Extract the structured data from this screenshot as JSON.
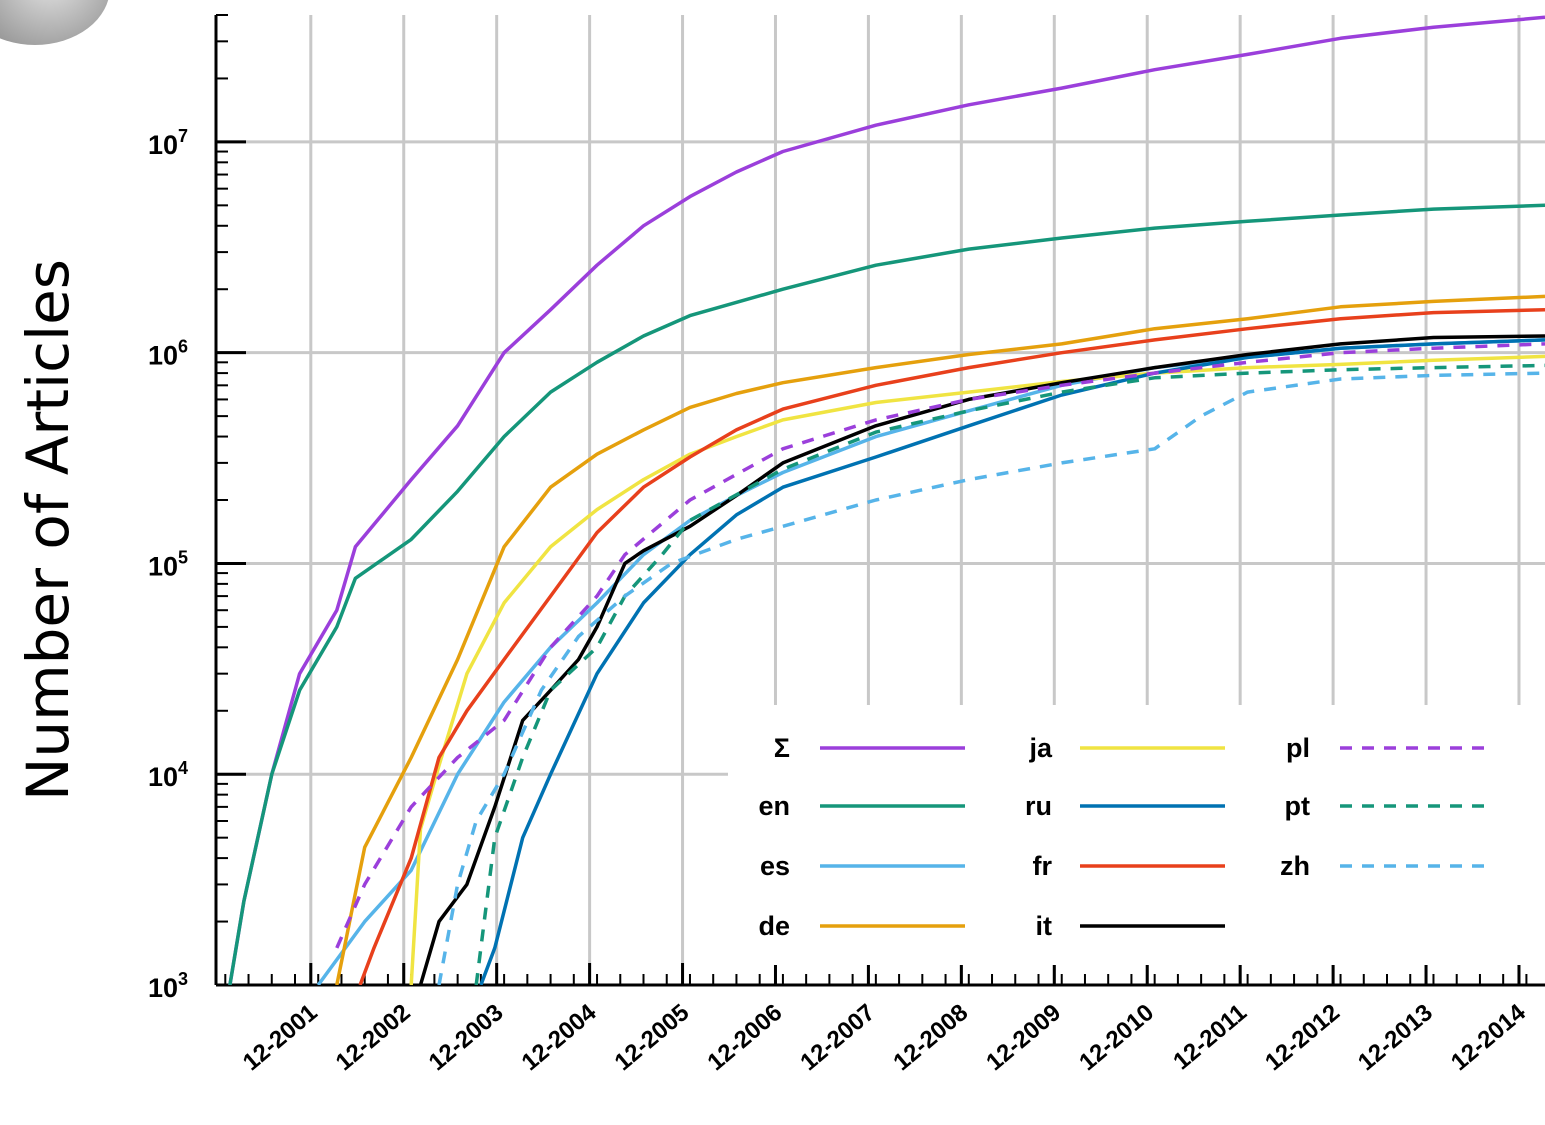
{
  "chart_data": {
    "type": "line",
    "ylabel": "Number of Articles",
    "xlabel": "",
    "yscale": "log",
    "ylim": [
      1000,
      40000000
    ],
    "xlim": [
      2000.9,
      2015.2
    ],
    "y_ticks": [
      {
        "value": 1000,
        "base": "10",
        "exp": "3"
      },
      {
        "value": 10000,
        "base": "10",
        "exp": "4"
      },
      {
        "value": 100000,
        "base": "10",
        "exp": "5"
      },
      {
        "value": 1000000,
        "base": "10",
        "exp": "6"
      },
      {
        "value": 10000000,
        "base": "10",
        "exp": "7"
      }
    ],
    "x_ticks": [
      {
        "value": 2001.92,
        "label": "12-2001"
      },
      {
        "value": 2002.92,
        "label": "12-2002"
      },
      {
        "value": 2003.92,
        "label": "12-2003"
      },
      {
        "value": 2004.92,
        "label": "12-2004"
      },
      {
        "value": 2005.92,
        "label": "12-2005"
      },
      {
        "value": 2006.92,
        "label": "12-2006"
      },
      {
        "value": 2007.92,
        "label": "12-2007"
      },
      {
        "value": 2008.92,
        "label": "12-2008"
      },
      {
        "value": 2009.92,
        "label": "12-2009"
      },
      {
        "value": 2010.92,
        "label": "12-2010"
      },
      {
        "value": 2011.92,
        "label": "12-2011"
      },
      {
        "value": 2012.92,
        "label": "12-2012"
      },
      {
        "value": 2013.92,
        "label": "12-2013"
      },
      {
        "value": 2014.92,
        "label": "12-2014"
      }
    ],
    "grid": true,
    "legend_position": "bottom-right",
    "series": [
      {
        "name": "Σ",
        "color": "#9b3fdb",
        "dash": "solid",
        "points": [
          [
            2001.05,
            1000
          ],
          [
            2001.2,
            2500
          ],
          [
            2001.5,
            10000
          ],
          [
            2001.8,
            30000
          ],
          [
            2002.2,
            60000
          ],
          [
            2002.4,
            120000
          ],
          [
            2003.0,
            250000
          ],
          [
            2003.5,
            450000
          ],
          [
            2004.0,
            1000000
          ],
          [
            2004.5,
            1600000
          ],
          [
            2005.0,
            2600000
          ],
          [
            2005.5,
            4000000
          ],
          [
            2006.0,
            5500000
          ],
          [
            2006.5,
            7200000
          ],
          [
            2007.0,
            9000000
          ],
          [
            2008.0,
            12000000
          ],
          [
            2009.0,
            15000000
          ],
          [
            2010.0,
            18000000
          ],
          [
            2011.0,
            22000000
          ],
          [
            2012.0,
            26000000
          ],
          [
            2013.0,
            31000000
          ],
          [
            2014.0,
            35000000
          ],
          [
            2015.2,
            39000000
          ]
        ]
      },
      {
        "name": "en",
        "color": "#15967a",
        "dash": "solid",
        "points": [
          [
            2001.05,
            1000
          ],
          [
            2001.2,
            2500
          ],
          [
            2001.5,
            10000
          ],
          [
            2001.8,
            25000
          ],
          [
            2002.2,
            50000
          ],
          [
            2002.4,
            85000
          ],
          [
            2003.0,
            130000
          ],
          [
            2003.5,
            220000
          ],
          [
            2004.0,
            400000
          ],
          [
            2004.5,
            650000
          ],
          [
            2005.0,
            900000
          ],
          [
            2005.5,
            1200000
          ],
          [
            2006.0,
            1500000
          ],
          [
            2007.0,
            2000000
          ],
          [
            2008.0,
            2600000
          ],
          [
            2009.0,
            3100000
          ],
          [
            2010.0,
            3500000
          ],
          [
            2011.0,
            3900000
          ],
          [
            2012.0,
            4200000
          ],
          [
            2013.0,
            4500000
          ],
          [
            2014.0,
            4800000
          ],
          [
            2015.2,
            5000000
          ]
        ]
      },
      {
        "name": "es",
        "color": "#56b4e9",
        "dash": "solid",
        "points": [
          [
            2002.0,
            1000
          ],
          [
            2002.5,
            2000
          ],
          [
            2003.0,
            3500
          ],
          [
            2003.5,
            10000
          ],
          [
            2004.0,
            22000
          ],
          [
            2004.5,
            40000
          ],
          [
            2005.0,
            65000
          ],
          [
            2005.5,
            110000
          ],
          [
            2006.0,
            160000
          ],
          [
            2006.5,
            210000
          ],
          [
            2007.0,
            270000
          ],
          [
            2008.0,
            400000
          ],
          [
            2009.0,
            530000
          ],
          [
            2010.0,
            700000
          ],
          [
            2011.0,
            850000
          ],
          [
            2012.0,
            950000
          ],
          [
            2013.0,
            1050000
          ],
          [
            2014.0,
            1100000
          ],
          [
            2015.2,
            1150000
          ]
        ]
      },
      {
        "name": "de",
        "color": "#e5a00d",
        "dash": "solid",
        "points": [
          [
            2002.2,
            1000
          ],
          [
            2002.5,
            4500
          ],
          [
            2003.0,
            12000
          ],
          [
            2003.5,
            35000
          ],
          [
            2004.0,
            120000
          ],
          [
            2004.5,
            230000
          ],
          [
            2005.0,
            330000
          ],
          [
            2005.5,
            430000
          ],
          [
            2006.0,
            550000
          ],
          [
            2006.5,
            640000
          ],
          [
            2007.0,
            720000
          ],
          [
            2008.0,
            850000
          ],
          [
            2009.0,
            980000
          ],
          [
            2010.0,
            1100000
          ],
          [
            2011.0,
            1300000
          ],
          [
            2012.0,
            1450000
          ],
          [
            2013.0,
            1650000
          ],
          [
            2014.0,
            1750000
          ],
          [
            2015.2,
            1850000
          ]
        ]
      },
      {
        "name": "ja",
        "color": "#f0e442",
        "dash": "solid",
        "points": [
          [
            2003.0,
            1000
          ],
          [
            2003.1,
            5500
          ],
          [
            2003.3,
            11000
          ],
          [
            2003.6,
            30000
          ],
          [
            2004.0,
            65000
          ],
          [
            2004.5,
            120000
          ],
          [
            2005.0,
            180000
          ],
          [
            2005.5,
            250000
          ],
          [
            2006.0,
            330000
          ],
          [
            2006.5,
            400000
          ],
          [
            2007.0,
            480000
          ],
          [
            2008.0,
            580000
          ],
          [
            2009.0,
            650000
          ],
          [
            2010.0,
            730000
          ],
          [
            2011.0,
            800000
          ],
          [
            2012.0,
            850000
          ],
          [
            2013.0,
            880000
          ],
          [
            2014.0,
            920000
          ],
          [
            2015.2,
            960000
          ]
        ]
      },
      {
        "name": "ru",
        "color": "#0072b2",
        "dash": "solid",
        "points": [
          [
            2003.75,
            1000
          ],
          [
            2003.9,
            1500
          ],
          [
            2004.2,
            5000
          ],
          [
            2004.5,
            10000
          ],
          [
            2005.0,
            30000
          ],
          [
            2005.5,
            65000
          ],
          [
            2006.0,
            110000
          ],
          [
            2006.5,
            170000
          ],
          [
            2007.0,
            230000
          ],
          [
            2008.0,
            320000
          ],
          [
            2009.0,
            450000
          ],
          [
            2010.0,
            630000
          ],
          [
            2011.0,
            800000
          ],
          [
            2012.0,
            950000
          ],
          [
            2013.0,
            1050000
          ],
          [
            2014.0,
            1100000
          ],
          [
            2015.2,
            1150000
          ]
        ]
      },
      {
        "name": "fr",
        "color": "#e8401c",
        "dash": "solid",
        "points": [
          [
            2002.45,
            1000
          ],
          [
            2002.6,
            1500
          ],
          [
            2003.0,
            4000
          ],
          [
            2003.3,
            12000
          ],
          [
            2003.6,
            20000
          ],
          [
            2004.0,
            35000
          ],
          [
            2004.5,
            70000
          ],
          [
            2005.0,
            140000
          ],
          [
            2005.5,
            230000
          ],
          [
            2006.0,
            320000
          ],
          [
            2006.5,
            430000
          ],
          [
            2007.0,
            540000
          ],
          [
            2008.0,
            700000
          ],
          [
            2009.0,
            850000
          ],
          [
            2010.0,
            1000000
          ],
          [
            2011.0,
            1150000
          ],
          [
            2012.0,
            1300000
          ],
          [
            2013.0,
            1450000
          ],
          [
            2014.0,
            1550000
          ],
          [
            2015.2,
            1600000
          ]
        ]
      },
      {
        "name": "it",
        "color": "#000000",
        "dash": "solid",
        "points": [
          [
            2003.1,
            1000
          ],
          [
            2003.3,
            2000
          ],
          [
            2003.6,
            3000
          ],
          [
            2003.9,
            7000
          ],
          [
            2004.2,
            18000
          ],
          [
            2004.5,
            25000
          ],
          [
            2004.8,
            35000
          ],
          [
            2005.0,
            50000
          ],
          [
            2005.3,
            100000
          ],
          [
            2005.5,
            115000
          ],
          [
            2006.0,
            150000
          ],
          [
            2006.5,
            210000
          ],
          [
            2007.0,
            300000
          ],
          [
            2008.0,
            450000
          ],
          [
            2009.0,
            600000
          ],
          [
            2010.0,
            720000
          ],
          [
            2011.0,
            850000
          ],
          [
            2012.0,
            980000
          ],
          [
            2013.0,
            1100000
          ],
          [
            2014.0,
            1180000
          ],
          [
            2015.2,
            1200000
          ]
        ]
      },
      {
        "name": "pl",
        "color": "#9b3fdb",
        "dash": "dashed",
        "points": [
          [
            2002.2,
            1500
          ],
          [
            2002.5,
            3000
          ],
          [
            2003.0,
            7000
          ],
          [
            2003.5,
            12000
          ],
          [
            2004.0,
            18000
          ],
          [
            2004.5,
            40000
          ],
          [
            2005.0,
            70000
          ],
          [
            2005.3,
            110000
          ],
          [
            2006.0,
            200000
          ],
          [
            2007.0,
            350000
          ],
          [
            2008.0,
            480000
          ],
          [
            2009.0,
            600000
          ],
          [
            2010.0,
            700000
          ],
          [
            2011.0,
            800000
          ],
          [
            2012.0,
            900000
          ],
          [
            2013.0,
            1000000
          ],
          [
            2014.0,
            1050000
          ],
          [
            2015.2,
            1100000
          ]
        ]
      },
      {
        "name": "pt",
        "color": "#15967a",
        "dash": "dashed",
        "points": [
          [
            2003.7,
            1000
          ],
          [
            2003.9,
            5000
          ],
          [
            2004.2,
            12000
          ],
          [
            2004.5,
            25000
          ],
          [
            2005.0,
            40000
          ],
          [
            2005.3,
            70000
          ],
          [
            2005.7,
            110000
          ],
          [
            2006.0,
            160000
          ],
          [
            2007.0,
            280000
          ],
          [
            2008.0,
            420000
          ],
          [
            2009.0,
            530000
          ],
          [
            2010.0,
            650000
          ],
          [
            2011.0,
            760000
          ],
          [
            2012.0,
            800000
          ],
          [
            2013.0,
            830000
          ],
          [
            2014.0,
            850000
          ],
          [
            2015.2,
            870000
          ]
        ]
      },
      {
        "name": "zh",
        "color": "#56b4e9",
        "dash": "dashed",
        "points": [
          [
            2003.3,
            1000
          ],
          [
            2003.5,
            3000
          ],
          [
            2003.7,
            6000
          ],
          [
            2004.0,
            10000
          ],
          [
            2004.4,
            25000
          ],
          [
            2004.8,
            45000
          ],
          [
            2005.3,
            70000
          ],
          [
            2005.8,
            100000
          ],
          [
            2006.5,
            130000
          ],
          [
            2007.0,
            150000
          ],
          [
            2008.0,
            200000
          ],
          [
            2009.0,
            250000
          ],
          [
            2010.0,
            300000
          ],
          [
            2011.0,
            350000
          ],
          [
            2011.5,
            500000
          ],
          [
            2012.0,
            650000
          ],
          [
            2013.0,
            750000
          ],
          [
            2014.0,
            780000
          ],
          [
            2015.2,
            800000
          ]
        ]
      }
    ]
  }
}
